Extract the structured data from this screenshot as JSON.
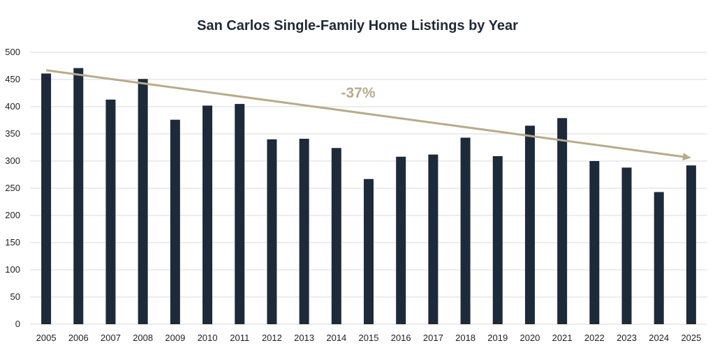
{
  "colors": {
    "bar": "#1d2a3a",
    "trend": "#b8ab8a",
    "grid": "#d9d9d9"
  },
  "chart_data": {
    "type": "bar",
    "title": "San Carlos Single-Family Home Listings by Year",
    "categories": [
      "2005",
      "2006",
      "2007",
      "2008",
      "2009",
      "2010",
      "2011",
      "2012",
      "2013",
      "2014",
      "2015",
      "2016",
      "2017",
      "2018",
      "2019",
      "2020",
      "2021",
      "2022",
      "2023",
      "2024",
      "2025"
    ],
    "values": [
      461,
      471,
      413,
      451,
      376,
      402,
      405,
      340,
      341,
      324,
      267,
      308,
      312,
      343,
      309,
      365,
      379,
      300,
      288,
      243,
      292
    ],
    "ylim": [
      0,
      500
    ],
    "yticks": [
      0,
      50,
      100,
      150,
      200,
      250,
      300,
      350,
      400,
      450,
      500
    ],
    "grid": true,
    "legend": "none",
    "annotation": {
      "text": "-37%",
      "trend_start": 467,
      "trend_end": 306
    }
  }
}
